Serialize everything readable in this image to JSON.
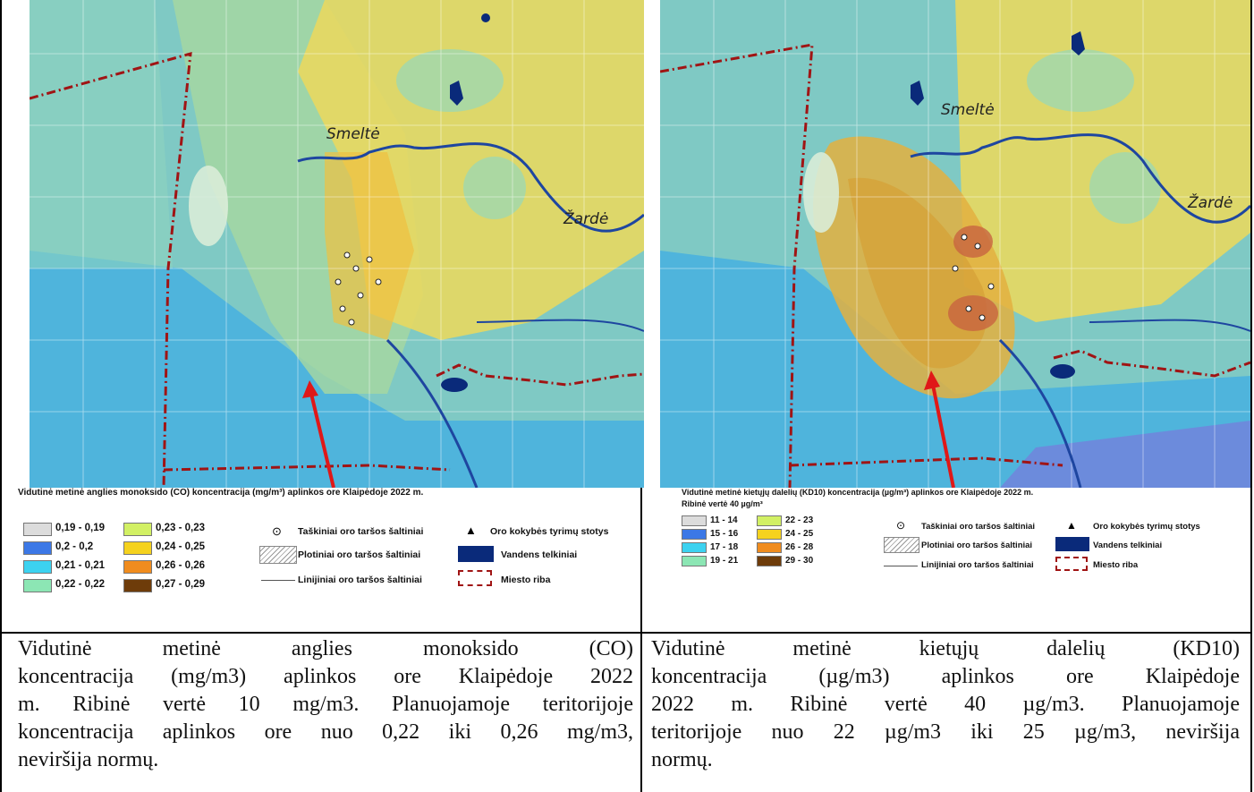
{
  "left": {
    "map": {
      "places": [
        "Smeltė",
        "Žardė"
      ]
    },
    "legend": {
      "title": "Vidutinė metinė anglies monoksido (CO) koncentracija (mg/m³) aplinkos ore Klaipėdoje 2022 m.",
      "subtitle": "",
      "classes": [
        {
          "label": "0,19 - 0,19",
          "color": "#dcdcdc"
        },
        {
          "label": "0,2 - 0,2",
          "color": "#3c78e6"
        },
        {
          "label": "0,21 - 0,21",
          "color": "#3cd2f0"
        },
        {
          "label": "0,22 - 0,22",
          "color": "#8ce6b4"
        },
        {
          "label": "0,23 - 0,23",
          "color": "#d2f064"
        },
        {
          "label": "0,24 - 0,25",
          "color": "#f5d21e"
        },
        {
          "label": "0,26 - 0,26",
          "color": "#f08c1e"
        },
        {
          "label": "0,27 - 0,29",
          "color": "#6e3c0a"
        }
      ]
    },
    "caption_lines": [
      "Vidutinė metinė anglies monoksido (CO)",
      "koncentracija (mg/m3) aplinkos ore Klaipėdoje 2022",
      "m. Ribinė vertė 10 mg/m3. Planuojamoje teritorijoje",
      "koncentracija aplinkos ore nuo 0,22 iki 0,26 mg/m3,",
      "neviršija normų."
    ]
  },
  "right": {
    "map": {
      "places": [
        "Smeltė",
        "Žardė"
      ]
    },
    "legend": {
      "title": "Vidutinė metinė kietųjų dalelių (KD10) koncentracija (µg/m³) aplinkos ore Klaipėdoje 2022 m.",
      "subtitle": "Ribinė vertė 40 µg/m³",
      "classes": [
        {
          "label": "11 - 14",
          "color": "#dcdcdc"
        },
        {
          "label": "15 - 16",
          "color": "#3c78e6"
        },
        {
          "label": "17 - 18",
          "color": "#3cd2f0"
        },
        {
          "label": "19 - 21",
          "color": "#8ce6b4"
        },
        {
          "label": "22 - 23",
          "color": "#d2f064"
        },
        {
          "label": "24 - 25",
          "color": "#f5d21e"
        },
        {
          "label": "26 - 28",
          "color": "#f08c1e"
        },
        {
          "label": "29 - 30",
          "color": "#6e3c0a"
        }
      ]
    },
    "caption_lines": [
      "Vidutinė metinė kietųjų dalelių (KD10)",
      "koncentracija (µg/m3) aplinkos ore Klaipėdoje",
      "2022 m. Ribinė vertė 40 µg/m3. Planuojamoje",
      "teritorijoje nuo 22 µg/m3 iki 25 µg/m3, neviršija",
      "normų."
    ]
  },
  "symbols": {
    "point_sources": "Taškiniai oro taršos šaltiniai",
    "area_sources": "Plotiniai oro taršos šaltiniai",
    "line_sources": "Linijiniai oro taršos šaltiniai",
    "stations": "Oro kokybės tyrimų stotys",
    "water": "Vandens telkiniai",
    "city_border": "Miesto riba"
  },
  "colors": {
    "water": "#0a2a7a",
    "border": "#a01414",
    "arrow": "#e01818",
    "river": "#1e46a0"
  }
}
